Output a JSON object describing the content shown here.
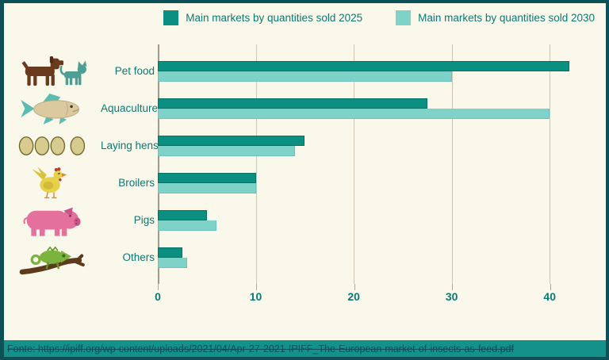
{
  "page": {
    "background": "#faf8ea",
    "border_color": "#0d5156",
    "text_color": "#0b7a74"
  },
  "legend": {
    "items": [
      {
        "label": "Main markets by quantities sold 2025",
        "color": "#0a8f80"
      },
      {
        "label": "Main markets by quantities sold 2030",
        "color": "#7fd2c7"
      }
    ]
  },
  "chart_data": {
    "type": "bar",
    "orientation": "horizontal",
    "title": "",
    "xlabel": "",
    "ylabel": "",
    "categories": [
      "Pet food",
      "Aquaculture",
      "Laying hens",
      "Broilers",
      "Pigs",
      "Others"
    ],
    "icons": [
      "dog-and-cat-icon",
      "fish-icon",
      "eggs-icon",
      "hen-icon",
      "pig-icon",
      "chameleon-icon"
    ],
    "series": [
      {
        "name": "Main markets by quantities sold 2025",
        "color": "#0a8f80",
        "values": [
          42,
          27.5,
          15,
          10,
          5,
          2.5
        ]
      },
      {
        "name": "Main markets by quantities sold 2030",
        "color": "#7fd2c7",
        "values": [
          30,
          40,
          14,
          10,
          6,
          3
        ]
      }
    ],
    "x_ticks": [
      0,
      10,
      20,
      30,
      40
    ],
    "xlim": [
      0,
      45
    ],
    "grid": true,
    "legend_position": "top"
  },
  "footer": {
    "source_text": "Fonte: https://ipiff.org/wp-content/uploads/2021/04/Apr-27-2021-IPIFF_The-European-market-of-insects-as-feed.pdf",
    "background": "#14918a"
  }
}
